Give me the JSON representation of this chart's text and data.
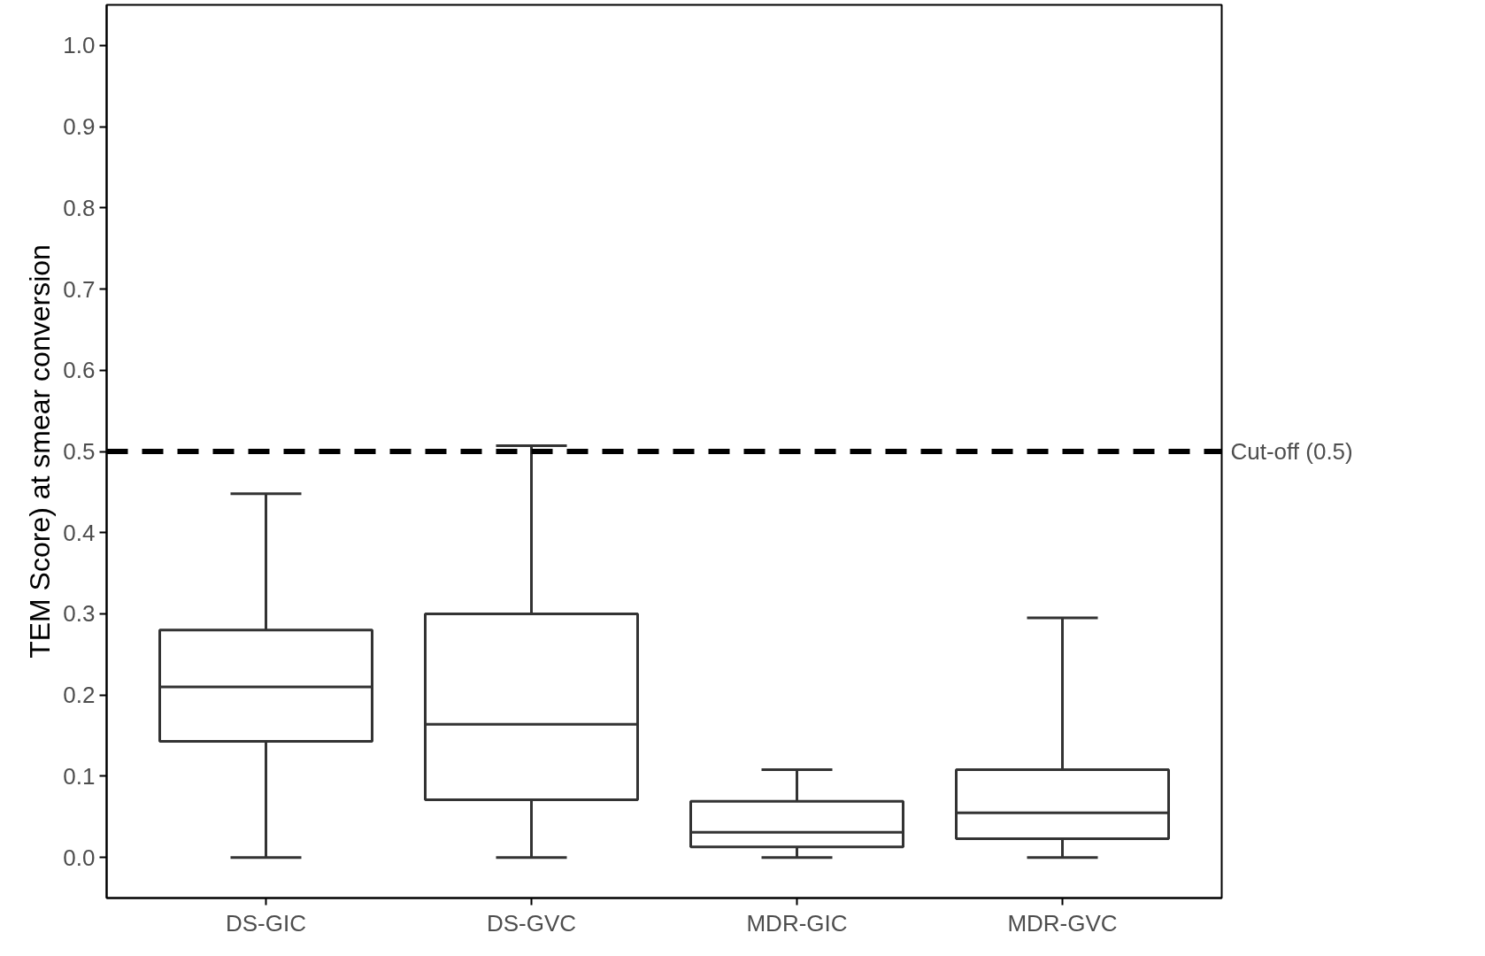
{
  "chart_data": {
    "type": "box",
    "ylabel": "TEM Score) at smear conversion",
    "categories": [
      "DS-GIC",
      "DS-GVC",
      "MDR-GIC",
      "MDR-GVC"
    ],
    "boxes": [
      {
        "low": 0,
        "q1": 0.143,
        "median": 0.21,
        "q3": 0.28,
        "high": 0.448
      },
      {
        "low": 0,
        "q1": 0.071,
        "median": 0.164,
        "q3": 0.3,
        "high": 0.507
      },
      {
        "low": 0,
        "q1": 0.013,
        "median": 0.031,
        "q3": 0.069,
        "high": 0.108
      },
      {
        "low": 0,
        "q1": 0.023,
        "median": 0.055,
        "q3": 0.108,
        "high": 0.295
      }
    ],
    "color": "#333333",
    "ylim": [
      -0.05,
      1.05
    ],
    "yticks": [
      {
        "value": 0,
        "label": "0.0"
      },
      0.1,
      0.2,
      0.3,
      0.4,
      0.5,
      0.6,
      0.7,
      0.8,
      0.9,
      {
        "value": 1,
        "label": "1.0"
      }
    ],
    "ref_lines": [
      {
        "axis": "y",
        "value": 0.5,
        "label": "Cut-off (0.5)",
        "color": "#000000",
        "line_style": "dashed"
      }
    ],
    "grid": false
  }
}
